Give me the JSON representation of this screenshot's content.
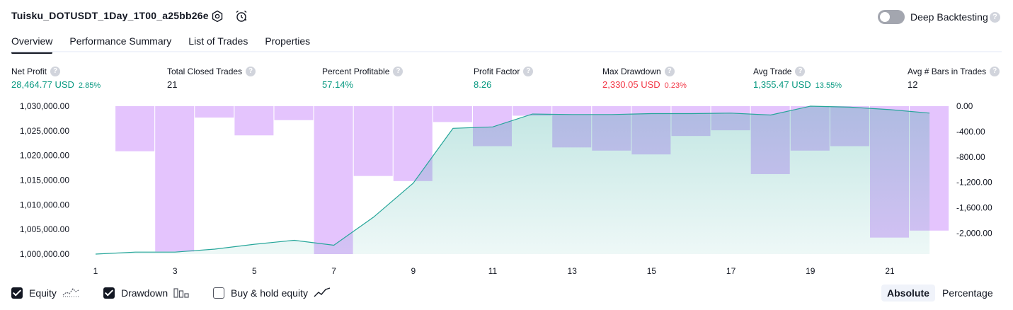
{
  "header": {
    "title": "Tuisku_DOTUSDT_1Day_1T00_a25bb26e",
    "deep_backtesting_label": "Deep Backtesting",
    "deep_backtesting_enabled": false,
    "help_glyph": "?"
  },
  "tabs": [
    {
      "label": "Overview",
      "active": true
    },
    {
      "label": "Performance Summary",
      "active": false
    },
    {
      "label": "List of Trades",
      "active": false
    },
    {
      "label": "Properties",
      "active": false
    }
  ],
  "metrics": [
    {
      "label": "Net Profit",
      "value": "28,464.77 USD",
      "pct": "2.85%",
      "tone": "green"
    },
    {
      "label": "Total Closed Trades",
      "value": "21",
      "pct": "",
      "tone": "dark"
    },
    {
      "label": "Percent Profitable",
      "value": "57.14%",
      "pct": "",
      "tone": "green"
    },
    {
      "label": "Profit Factor",
      "value": "8.26",
      "pct": "",
      "tone": "green"
    },
    {
      "label": "Max Drawdown",
      "value": "2,330.05 USD",
      "pct": "0.23%",
      "tone": "red"
    },
    {
      "label": "Avg Trade",
      "value": "1,355.47 USD",
      "pct": "13.55%",
      "tone": "green"
    },
    {
      "label": "Avg # Bars in Trades",
      "value": "12",
      "pct": "",
      "tone": "dark"
    }
  ],
  "chart_data": {
    "type": "area",
    "x": [
      1,
      2,
      3,
      4,
      5,
      6,
      7,
      8,
      9,
      10,
      11,
      12,
      13,
      14,
      15,
      16,
      17,
      18,
      19,
      20,
      21,
      22
    ],
    "x_tick_labels": [
      "1",
      "3",
      "5",
      "7",
      "9",
      "11",
      "13",
      "15",
      "17",
      "19",
      "21"
    ],
    "y_left_ticks": [
      "1,030,000.00",
      "1,025,000.00",
      "1,020,000.00",
      "1,015,000.00",
      "1,010,000.00",
      "1,005,000.00",
      "1,000,000.00"
    ],
    "y_left_range": [
      1000000,
      1030000
    ],
    "y_right_ticks": [
      "0.00",
      "-400.00",
      "-800.00",
      "-1,200.00",
      "-1,600.00",
      "-2,000.00"
    ],
    "y_right_range": [
      -2330.05,
      0
    ],
    "series": [
      {
        "key": "equity",
        "values": [
          1000000,
          1000400,
          1000400,
          1001000,
          1002000,
          1002800,
          1001800,
          1007500,
          1014400,
          1025500,
          1025800,
          1028400,
          1028300,
          1028300,
          1028500,
          1028500,
          1028600,
          1028200,
          1030000,
          1029800,
          1029300,
          1028600
        ],
        "color": "#26a69a"
      },
      {
        "key": "drawdown",
        "values": [
          0,
          -710,
          -2290,
          -180,
          -460,
          -220,
          -2330,
          -1100,
          -1180,
          -250,
          -630,
          -150,
          -650,
          -700,
          -760,
          -470,
          -380,
          -1070,
          -700,
          -630,
          -2070,
          -1960
        ],
        "color": "#ce93fc"
      }
    ],
    "grid": false
  },
  "legend": [
    {
      "label": "Equity",
      "checked": true,
      "icon": "equity-line-icon"
    },
    {
      "label": "Drawdown",
      "checked": true,
      "icon": "drawdown-bars-icon"
    },
    {
      "label": "Buy & hold equity",
      "checked": false,
      "icon": "buy-hold-line-icon"
    }
  ],
  "mode_buttons": [
    {
      "label": "Absolute",
      "active": true
    },
    {
      "label": "Percentage",
      "active": false
    }
  ]
}
